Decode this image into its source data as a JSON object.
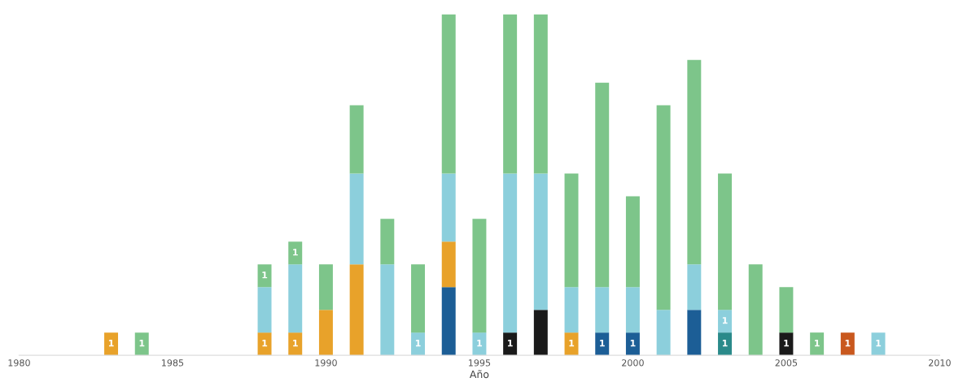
{
  "chart_data": {
    "type": "bar",
    "stacked": true,
    "xlabel": "Año",
    "x": [
      1983,
      1984,
      1985,
      1986,
      1987,
      1988,
      1989,
      1990,
      1991,
      1992,
      1993,
      1994,
      1995,
      1996,
      1997,
      1998,
      1999,
      2000,
      2001,
      2002,
      2003,
      2004,
      2005,
      2006,
      2007,
      2008
    ],
    "xlim": [
      1980,
      2010
    ],
    "xticks": [
      1980,
      1985,
      1990,
      1995,
      2000,
      2005,
      2010
    ],
    "tick_labels": "x",
    "series": [
      {
        "color": "#1a1a1a",
        "values": [
          null,
          null,
          null,
          null,
          null,
          null,
          null,
          null,
          null,
          null,
          null,
          null,
          null,
          1,
          2,
          null,
          null,
          null,
          null,
          null,
          null,
          null,
          1,
          null,
          null,
          null
        ],
        "value_labels": [
          null,
          null,
          null,
          null,
          null,
          null,
          null,
          null,
          null,
          null,
          null,
          null,
          null,
          "1",
          null,
          null,
          null,
          null,
          null,
          null,
          null,
          null,
          "1",
          null,
          null,
          null
        ]
      },
      {
        "color": "#2a8a8a",
        "values": [
          null,
          null,
          null,
          null,
          null,
          null,
          null,
          null,
          null,
          null,
          null,
          null,
          null,
          null,
          null,
          null,
          null,
          null,
          null,
          null,
          1,
          null,
          null,
          null,
          null,
          null
        ],
        "value_labels": [
          null,
          null,
          null,
          null,
          null,
          null,
          null,
          null,
          null,
          null,
          null,
          null,
          null,
          null,
          null,
          null,
          null,
          null,
          null,
          null,
          "1",
          null,
          null,
          null,
          null,
          null
        ]
      },
      {
        "color": "#1c5e96",
        "values": [
          null,
          null,
          null,
          null,
          null,
          null,
          null,
          null,
          null,
          null,
          null,
          3,
          null,
          null,
          null,
          null,
          1,
          1,
          null,
          2,
          null,
          null,
          null,
          null,
          null,
          null
        ],
        "value_labels": [
          null,
          null,
          null,
          null,
          null,
          null,
          null,
          null,
          null,
          null,
          null,
          null,
          null,
          null,
          null,
          null,
          "1",
          "1",
          null,
          null,
          null,
          null,
          null,
          null,
          null,
          null
        ]
      },
      {
        "color": "#e8a22a",
        "values": [
          1,
          null,
          null,
          null,
          null,
          1,
          1,
          2,
          4,
          null,
          null,
          2,
          null,
          null,
          null,
          1,
          null,
          null,
          null,
          null,
          null,
          null,
          null,
          null,
          null,
          null
        ],
        "value_labels": [
          "1",
          null,
          null,
          null,
          null,
          "1",
          "1",
          null,
          null,
          null,
          null,
          null,
          null,
          null,
          null,
          "1",
          null,
          null,
          null,
          null,
          null,
          null,
          null,
          null,
          null,
          null
        ]
      },
      {
        "color": "#c9581e",
        "values": [
          null,
          null,
          null,
          null,
          null,
          null,
          null,
          null,
          null,
          null,
          null,
          null,
          null,
          null,
          null,
          null,
          null,
          null,
          null,
          null,
          null,
          null,
          null,
          null,
          1,
          null
        ],
        "value_labels": [
          null,
          null,
          null,
          null,
          null,
          null,
          null,
          null,
          null,
          null,
          null,
          null,
          null,
          null,
          null,
          null,
          null,
          null,
          null,
          null,
          null,
          null,
          null,
          null,
          "1",
          null
        ]
      },
      {
        "color": "#8ccfdc",
        "values": [
          null,
          null,
          null,
          null,
          null,
          2,
          3,
          null,
          4,
          4,
          1,
          3,
          1,
          7,
          6,
          2,
          2,
          2,
          2,
          2,
          1,
          null,
          null,
          null,
          null,
          1
        ],
        "value_labels": [
          null,
          null,
          null,
          null,
          null,
          null,
          null,
          null,
          null,
          null,
          "1",
          null,
          "1",
          null,
          null,
          null,
          null,
          null,
          null,
          null,
          "1",
          null,
          null,
          null,
          null,
          "1"
        ]
      },
      {
        "color": "#7dc58a",
        "values": [
          null,
          1,
          null,
          null,
          null,
          1,
          1,
          2,
          3,
          2,
          3,
          7,
          5,
          7,
          7,
          5,
          9,
          4,
          9,
          9,
          6,
          4,
          2,
          1,
          null,
          null
        ],
        "value_labels": [
          null,
          "1",
          null,
          null,
          null,
          "1",
          "1",
          null,
          null,
          null,
          null,
          null,
          null,
          null,
          null,
          null,
          null,
          null,
          null,
          null,
          null,
          null,
          null,
          "1",
          null,
          null
        ]
      }
    ]
  }
}
